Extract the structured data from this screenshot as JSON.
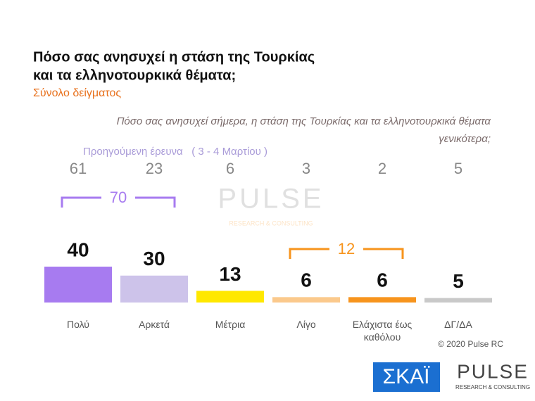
{
  "chart_data": {
    "type": "bar",
    "title": [
      "Πόσο σας ανησυχεί η στάση της Τουρκίας",
      "και τα ελληνοτουρκικά θέματα;"
    ],
    "subtitle": "Σύνολο δείγματος",
    "question": [
      "Πόσο σας ανησυχεί σήμερα, η στάση της Τουρκίας και τα ελληνοτουρκικά θέματα",
      "γενικότερα;"
    ],
    "previous_label": "Προηγούμενη έρευνα   ( 3 - 4 Μαρτίου )",
    "categories": [
      "Πολύ",
      "Αρκετά",
      "Μέτρια",
      "Λίγο",
      "Ελάχιστα έως καθόλου",
      "ΔΓ/ΔΑ"
    ],
    "values": [
      40,
      30,
      13,
      6,
      6,
      5
    ],
    "colors": [
      "#a77bf0",
      "#cdc3ea",
      "#ffe800",
      "#fbc98c",
      "#f7941d",
      "#c9c9c9"
    ],
    "previous_values": [
      61,
      23,
      6,
      3,
      2,
      5
    ],
    "groups": [
      {
        "value": 70,
        "from": 0,
        "to": 1,
        "color": "#a77bf0"
      },
      {
        "value": 12,
        "from": 3,
        "to": 4,
        "color": "#f7941d"
      }
    ],
    "ylim": [
      0,
      40
    ],
    "copyright": "© 2020 Pulse RC",
    "logos": {
      "skai": "ΣΚΑΪ",
      "pulse": "PULSE",
      "pulse_tagline": "RESEARCH & CONSULTING"
    }
  }
}
